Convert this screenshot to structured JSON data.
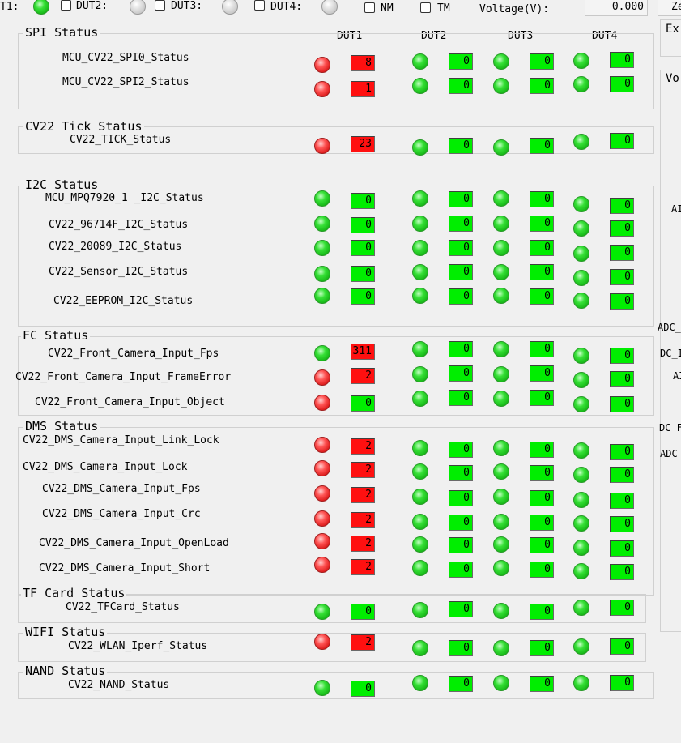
{
  "top": {
    "dut1_label": "T1:",
    "dut2_label": "DUT2:",
    "dut3_label": "DUT3:",
    "dut4_label": "DUT4:",
    "nm_label": "NM",
    "tm_label": "TM",
    "voltage_label": "Voltage(V):",
    "voltage_value": "0.000",
    "right_button": "Ze"
  },
  "right_panel": {
    "ex_label": "Ex",
    "vo_label": "Vo",
    "ai_label_1": "AI",
    "adc_1": "ADC_",
    "adc_2": "DC_I",
    "ai_label_2": "AI",
    "adc_3": "DC_F",
    "adc_4": "ADC_I"
  },
  "headers": [
    "DUT1",
    "DUT2",
    "DUT3",
    "DUT4"
  ],
  "groups": {
    "spi": {
      "title": "SPI Status",
      "rows": [
        {
          "label": "MCU_CV22_SPI0_Status",
          "v": [
            "8",
            "0",
            "0",
            "0"
          ],
          "s": [
            "red",
            "green",
            "green",
            "green"
          ]
        },
        {
          "label": "MCU_CV22_SPI2_Status",
          "v": [
            "1",
            "0",
            "0",
            "0"
          ],
          "s": [
            "red",
            "green",
            "green",
            "green"
          ]
        }
      ]
    },
    "tick": {
      "title": "CV22 Tick Status",
      "rows": [
        {
          "label": "CV22_TICK_Status",
          "v": [
            "23",
            "0",
            "0",
            "0"
          ],
          "s": [
            "red",
            "green",
            "green",
            "green"
          ]
        }
      ]
    },
    "i2c": {
      "title": "I2C Status",
      "rows": [
        {
          "label": "MCU_MPQ7920_1 _I2C_Status",
          "v": [
            "0",
            "0",
            "0",
            "0"
          ],
          "s": [
            "green",
            "green",
            "green",
            "green"
          ]
        },
        {
          "label": "CV22_96714F_I2C_Status",
          "v": [
            "0",
            "0",
            "0",
            "0"
          ],
          "s": [
            "green",
            "green",
            "green",
            "green"
          ]
        },
        {
          "label": "CV22_20089_I2C_Status",
          "v": [
            "0",
            "0",
            "0",
            "0"
          ],
          "s": [
            "green",
            "green",
            "green",
            "green"
          ]
        },
        {
          "label": "CV22_Sensor_I2C_Status",
          "v": [
            "0",
            "0",
            "0",
            "0"
          ],
          "s": [
            "green",
            "green",
            "green",
            "green"
          ]
        },
        {
          "label": "CV22_EEPROM_I2C_Status",
          "v": [
            "0",
            "0",
            "0",
            "0"
          ],
          "s": [
            "green",
            "green",
            "green",
            "green"
          ]
        }
      ]
    },
    "fc": {
      "title": "FC Status",
      "rows": [
        {
          "label": "CV22_Front_Camera_Input_Fps",
          "v": [
            "311",
            "0",
            "0",
            "0"
          ],
          "s": [
            "green",
            "green",
            "green",
            "green"
          ],
          "f": [
            "red",
            "green",
            "green",
            "green"
          ]
        },
        {
          "label": "CV22_Front_Camera_Input_FrameError",
          "v": [
            "2",
            "0",
            "0",
            "0"
          ],
          "s": [
            "red",
            "green",
            "green",
            "green"
          ]
        },
        {
          "label": "CV22_Front_Camera_Input_Object",
          "v": [
            "0",
            "0",
            "0",
            "0"
          ],
          "s": [
            "red",
            "green",
            "green",
            "green"
          ],
          "f": [
            "green",
            "green",
            "green",
            "green"
          ]
        }
      ]
    },
    "dms": {
      "title": "DMS Status",
      "rows": [
        {
          "label": "CV22_DMS_Camera_Input_Link_Lock",
          "v": [
            "2",
            "0",
            "0",
            "0"
          ],
          "s": [
            "red",
            "green",
            "green",
            "green"
          ]
        },
        {
          "label": "CV22_DMS_Camera_Input_Lock",
          "v": [
            "2",
            "0",
            "0",
            "0"
          ],
          "s": [
            "red",
            "green",
            "green",
            "green"
          ]
        },
        {
          "label": "CV22_DMS_Camera_Input_Fps",
          "v": [
            "2",
            "0",
            "0",
            "0"
          ],
          "s": [
            "red",
            "green",
            "green",
            "green"
          ]
        },
        {
          "label": "CV22_DMS_Camera_Input_Crc",
          "v": [
            "2",
            "0",
            "0",
            "0"
          ],
          "s": [
            "red",
            "green",
            "green",
            "green"
          ]
        },
        {
          "label": "CV22_DMS_Camera_Input_OpenLoad",
          "v": [
            "2",
            "0",
            "0",
            "0"
          ],
          "s": [
            "red",
            "green",
            "green",
            "green"
          ]
        },
        {
          "label": "CV22_DMS_Camera_Input_Short",
          "v": [
            "2",
            "0",
            "0",
            "0"
          ],
          "s": [
            "red",
            "green",
            "green",
            "green"
          ]
        }
      ]
    },
    "tf": {
      "title": "TF Card Status",
      "rows": [
        {
          "label": "CV22_TFCard_Status",
          "v": [
            "0",
            "0",
            "0",
            "0"
          ],
          "s": [
            "green",
            "green",
            "green",
            "green"
          ]
        }
      ]
    },
    "wifi": {
      "title": "WIFI Status",
      "rows": [
        {
          "label": "CV22_WLAN_Iperf_Status",
          "v": [
            "2",
            "0",
            "0",
            "0"
          ],
          "s": [
            "red",
            "green",
            "green",
            "green"
          ]
        }
      ]
    },
    "nand": {
      "title": "NAND Status",
      "rows": [
        {
          "label": "CV22_NAND_Status",
          "v": [
            "0",
            "0",
            "0",
            "0"
          ],
          "s": [
            "green",
            "green",
            "green",
            "green"
          ]
        }
      ]
    }
  }
}
